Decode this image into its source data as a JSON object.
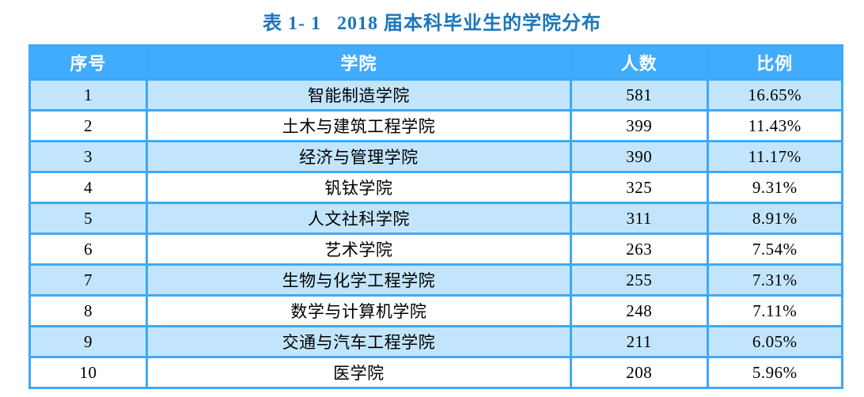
{
  "caption": {
    "number": "表 1- 1",
    "title": "2018 届本科毕业生的学院分布"
  },
  "table": {
    "headers": [
      "序号",
      "学院",
      "人数",
      "比例"
    ],
    "header_keys": [
      "index",
      "college",
      "count",
      "ratio"
    ],
    "rows": [
      [
        "1",
        "智能制造学院",
        "581",
        "16.65%"
      ],
      [
        "2",
        "土木与建筑工程学院",
        "399",
        "11.43%"
      ],
      [
        "3",
        "经济与管理学院",
        "390",
        "11.17%"
      ],
      [
        "4",
        "钒钛学院",
        "325",
        "9.31%"
      ],
      [
        "5",
        "人文社科学院",
        "311",
        "8.91%"
      ],
      [
        "6",
        "艺术学院",
        "263",
        "7.54%"
      ],
      [
        "7",
        "生物与化学工程学院",
        "255",
        "7.31%"
      ],
      [
        "8",
        "数学与计算机学院",
        "248",
        "7.11%"
      ],
      [
        "9",
        "交通与汽车工程学院",
        "211",
        "6.05%"
      ],
      [
        "10",
        "医学院",
        "208",
        "5.96%"
      ]
    ]
  },
  "colors": {
    "title_text": "#1B75BC",
    "header_bg": "#41ACFC",
    "header_text": "#FFFFFF",
    "border": "#3FA9F5",
    "row_alt_bg": "#C3E5FB",
    "row_bg": "#FFFFFF",
    "body_text": "#000000"
  }
}
